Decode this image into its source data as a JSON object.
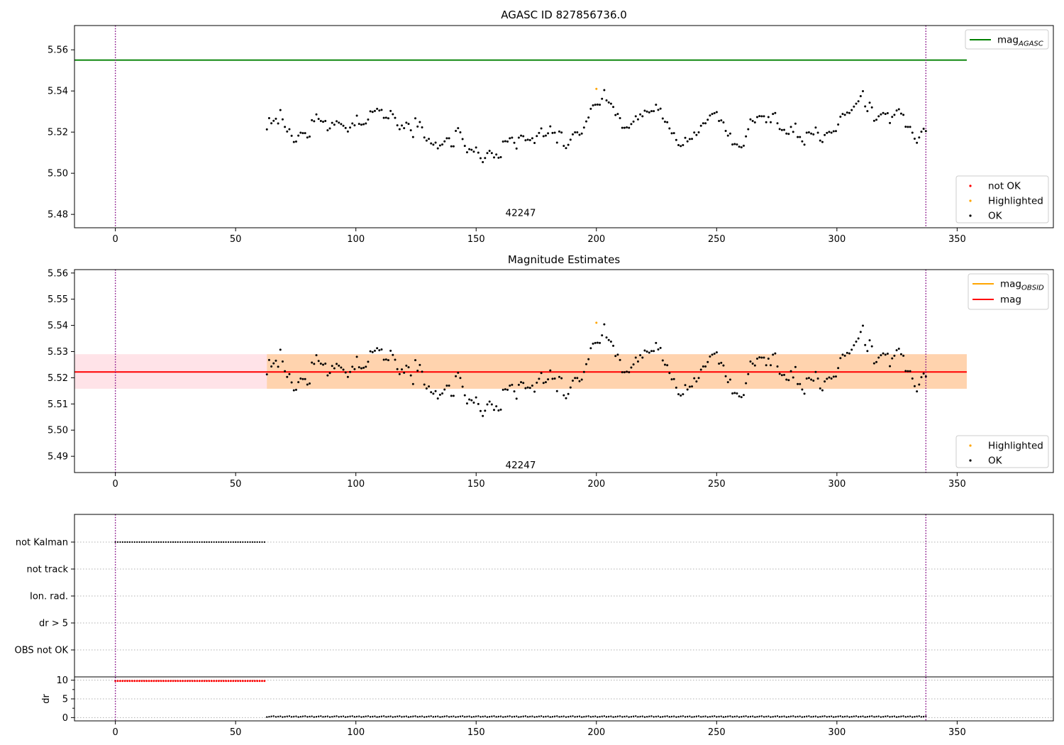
{
  "chart_data": [
    {
      "type": "scatter",
      "title": "AGASC ID 827856736.0",
      "xlim": [
        -17,
        390
      ],
      "ylim": [
        5.4735,
        5.5718
      ],
      "xticks": [
        "0",
        "50",
        "100",
        "150",
        "200",
        "250",
        "300",
        "350"
      ],
      "yticks": [
        "5.48",
        "5.50",
        "5.52",
        "5.54",
        "5.56"
      ],
      "hlines": [
        {
          "name": "mag_AGASC",
          "y": 5.555,
          "x_end": 354,
          "color": "#008000"
        }
      ],
      "vlines": [
        0,
        337
      ],
      "annotation": {
        "text": "42247",
        "x": 168.5,
        "y": 5.4805
      },
      "legend_lines": [
        {
          "main": "mag",
          "sub": "AGASC",
          "color": "#008000"
        }
      ],
      "legend_points": [
        {
          "label": "not OK",
          "color": "#ff0000"
        },
        {
          "label": "Highlighted",
          "color": "#ffa500"
        },
        {
          "label": "OK",
          "color": "#000000"
        }
      ],
      "highlighted": [
        [
          200,
          5.541
        ]
      ]
    },
    {
      "type": "scatter",
      "title": "Magnitude Estimates",
      "xlim": [
        -17,
        390
      ],
      "ylim": [
        5.4838,
        5.5613
      ],
      "xticks": [
        "0",
        "50",
        "100",
        "150",
        "200",
        "250",
        "300",
        "350"
      ],
      "yticks": [
        "5.49",
        "5.50",
        "5.51",
        "5.52",
        "5.53",
        "5.54",
        "5.55",
        "5.56"
      ],
      "hlines": [
        {
          "name": "mag",
          "y": 5.5222,
          "x_end": 354,
          "color": "#ff0000"
        }
      ],
      "bands": [
        {
          "y0": 5.5158,
          "y1": 5.529,
          "x0": -17,
          "x1": 354,
          "color": "#ffc0cb",
          "opacity": 0.45
        },
        {
          "y0": 5.5158,
          "y1": 5.529,
          "x0": 63,
          "x1": 354,
          "color": "#ffa500",
          "opacity": 0.25
        }
      ],
      "vlines": [
        0,
        337
      ],
      "annotation": {
        "text": "42247",
        "x": 168.5,
        "y": 5.4865
      },
      "legend_lines": [
        {
          "main": "mag",
          "sub": "OBSID",
          "color": "#ffa500"
        },
        {
          "main": "mag",
          "sub": "",
          "color": "#ff0000"
        }
      ],
      "legend_points": [
        {
          "label": "Highlighted",
          "color": "#ffa500"
        },
        {
          "label": "OK",
          "color": "#000000"
        }
      ],
      "highlighted": [
        [
          200,
          5.541
        ]
      ]
    },
    {
      "type": "scatter",
      "title": "",
      "xlim": [
        -17,
        390
      ],
      "flag_labels": [
        "not Kalman",
        "not track",
        "Ion. rad.",
        "dr > 5",
        "OBS not OK"
      ],
      "flag_not_kalman_x": [
        0,
        62
      ],
      "dr_ylabel": "dr",
      "dr_yticks": [
        "0",
        "5",
        "10"
      ],
      "dr_ylim": [
        -0.5,
        10.5
      ],
      "dr_high_value": 9.8,
      "dr_low_value": 0.15,
      "vlines": [
        0,
        337
      ],
      "xticks": [
        "0",
        "50",
        "100",
        "150",
        "200",
        "250",
        "300",
        "350"
      ]
    }
  ],
  "series_ok_y": [
    5.5213,
    5.5268,
    5.5243,
    5.5255,
    5.5265,
    5.5242,
    5.5307,
    5.5262,
    5.5225,
    5.5203,
    5.5214,
    5.5182,
    5.5152,
    5.5154,
    5.5183,
    5.5197,
    5.5195,
    5.5195,
    5.5174,
    5.5178,
    5.5258,
    5.5253,
    5.5286,
    5.5264,
    5.5254,
    5.525,
    5.5254,
    5.5209,
    5.5218,
    5.5245,
    5.5236,
    5.5253,
    5.5246,
    5.5239,
    5.5231,
    5.522,
    5.5203,
    5.5222,
    5.5242,
    5.5233,
    5.528,
    5.524,
    5.5236,
    5.5238,
    5.5242,
    5.5261,
    5.5301,
    5.5298,
    5.5303,
    5.5313,
    5.5305,
    5.5308,
    5.5269,
    5.527,
    5.5267,
    5.5303,
    5.5287,
    5.5269,
    5.5233,
    5.5214,
    5.5232,
    5.5219,
    5.5246,
    5.524,
    5.5209,
    5.5176,
    5.5267,
    5.5227,
    5.5249,
    5.5223,
    5.5174,
    5.5159,
    5.5167,
    5.5145,
    5.5139,
    5.5149,
    5.5121,
    5.5135,
    5.514,
    5.5155,
    5.517,
    5.517,
    5.5131,
    5.5131,
    5.5206,
    5.5219,
    5.5199,
    5.5166,
    5.5133,
    5.5102,
    5.5117,
    5.5114,
    5.5105,
    5.5125,
    5.51,
    5.5073,
    5.5054,
    5.5074,
    5.5098,
    5.5109,
    5.5098,
    5.5077,
    5.5091,
    5.5075,
    5.5078,
    5.5154,
    5.5156,
    5.5154,
    5.517,
    5.5173,
    5.5148,
    5.512,
    5.5173,
    5.5183,
    5.518,
    5.516,
    5.5163,
    5.5161,
    5.517,
    5.5147,
    5.5181,
    5.5196,
    5.5218,
    5.518,
    5.5183,
    5.5194,
    5.5228,
    5.5196,
    5.5197,
    5.5149,
    5.5203,
    5.5198,
    5.5133,
    5.5122,
    5.5138,
    5.5163,
    5.5189,
    5.5199,
    5.5199,
    5.5187,
    5.5193,
    5.5222,
    5.5252,
    5.5271,
    5.5313,
    5.533,
    5.5333,
    5.5334,
    5.5333,
    5.5362,
    5.5404,
    5.5354,
    5.5344,
    5.5338,
    5.5322,
    5.5283,
    5.5288,
    5.5268,
    5.5221,
    5.5221,
    5.5223,
    5.5221,
    5.5239,
    5.5251,
    5.5277,
    5.5262,
    5.5286,
    5.5277,
    5.5304,
    5.53,
    5.5296,
    5.5302,
    5.5302,
    5.5333,
    5.5308,
    5.5314,
    5.5266,
    5.525,
    5.5248,
    5.5218,
    5.5194,
    5.5195,
    5.5162,
    5.5137,
    5.5132,
    5.5137,
    5.5172,
    5.5155,
    5.5166,
    5.5167,
    5.5198,
    5.5186,
    5.5199,
    5.5231,
    5.5243,
    5.5243,
    5.526,
    5.5281,
    5.5288,
    5.5292,
    5.5297,
    5.5254,
    5.5257,
    5.5247,
    5.5206,
    5.5183,
    5.5193,
    5.514,
    5.5142,
    5.514,
    5.5129,
    5.5126,
    5.5134,
    5.5179,
    5.5214,
    5.5262,
    5.5254,
    5.5247,
    5.5273,
    5.5278,
    5.5277,
    5.5277,
    5.5248,
    5.5273,
    5.5248,
    5.5288,
    5.5293,
    5.5243,
    5.5215,
    5.521,
    5.5211,
    5.5193,
    5.5191,
    5.5225,
    5.5201,
    5.5241,
    5.5176,
    5.5176,
    5.5155,
    5.5139,
    5.5197,
    5.5199,
    5.5193,
    5.5189,
    5.5222,
    5.5197,
    5.5159,
    5.5152,
    5.5186,
    5.5196,
    5.5201,
    5.5197,
    5.5204,
    5.5205,
    5.5237,
    5.5275,
    5.5288,
    5.5284,
    5.5295,
    5.5293,
    5.5307,
    5.5324,
    5.5338,
    5.535,
    5.5375,
    5.5399,
    5.5325,
    5.5302,
    5.5343,
    5.532,
    5.5255,
    5.526,
    5.5277,
    5.5286,
    5.5293,
    5.5288,
    5.5292,
    5.5244,
    5.5274,
    5.5284,
    5.5305,
    5.5311,
    5.529,
    5.5284,
    5.5226,
    5.5225,
    5.5225,
    5.5197,
    5.5168,
    5.5148,
    5.5174,
    5.5202,
    5.5216,
    5.5205
  ]
}
